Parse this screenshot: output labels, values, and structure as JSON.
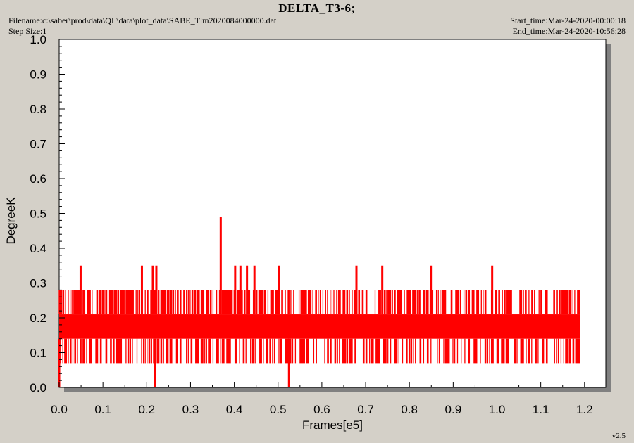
{
  "header": {
    "title": "DELTA_T3-6;",
    "filename": "Filename:c:\\saber\\prod\\data\\QL\\data\\plot_data\\SABE_Tlm2020084000000.dat",
    "step_size": "Step Size:1",
    "start_time": "Start_time:Mar-24-2020-00:00:18",
    "end_time": "End_time:Mar-24-2020-10:56:28"
  },
  "footer": {
    "version": "v2.5"
  },
  "colors": {
    "series": "#ff0000",
    "background": "#d4d0c8",
    "plot_area": "#ffffff",
    "shadow": "#808080"
  },
  "chart_data": {
    "type": "line",
    "title": "DELTA_T3-6;",
    "xlabel": "Frames[e5]",
    "ylabel": "DegreeK",
    "xlim": [
      0.0,
      1.25
    ],
    "ylim": [
      0.0,
      1.0
    ],
    "x_ticks": [
      "0.0",
      "0.1",
      "0.2",
      "0.3",
      "0.4",
      "0.5",
      "0.6",
      "0.7",
      "0.8",
      "0.9",
      "1.0",
      "1.1",
      "1.2"
    ],
    "y_ticks": [
      "0.0",
      "0.1",
      "0.2",
      "0.3",
      "0.4",
      "0.5",
      "0.6",
      "0.7",
      "0.8",
      "0.9",
      "1.0"
    ],
    "grid": false,
    "series": [
      {
        "color": "#ff0000",
        "x_range": [
          0.0,
          1.19
        ],
        "band": {
          "low": 0.07,
          "high": 0.28,
          "dense_low": 0.14,
          "dense_high": 0.21
        },
        "spikes": [
          {
            "x": 0.049,
            "y": 0.35
          },
          {
            "x": 0.189,
            "y": 0.35
          },
          {
            "x": 0.214,
            "y": 0.35
          },
          {
            "x": 0.222,
            "y": 0.35
          },
          {
            "x": 0.369,
            "y": 0.49
          },
          {
            "x": 0.402,
            "y": 0.35
          },
          {
            "x": 0.414,
            "y": 0.35
          },
          {
            "x": 0.429,
            "y": 0.35
          },
          {
            "x": 0.446,
            "y": 0.35
          },
          {
            "x": 0.502,
            "y": 0.35
          },
          {
            "x": 0.679,
            "y": 0.35
          },
          {
            "x": 0.738,
            "y": 0.35
          },
          {
            "x": 0.849,
            "y": 0.35
          },
          {
            "x": 0.989,
            "y": 0.35
          }
        ],
        "dips": [
          {
            "x": 0.0,
            "y": 0.0
          },
          {
            "x": 0.219,
            "y": 0.0
          },
          {
            "x": 0.525,
            "y": 0.0
          }
        ]
      }
    ]
  }
}
